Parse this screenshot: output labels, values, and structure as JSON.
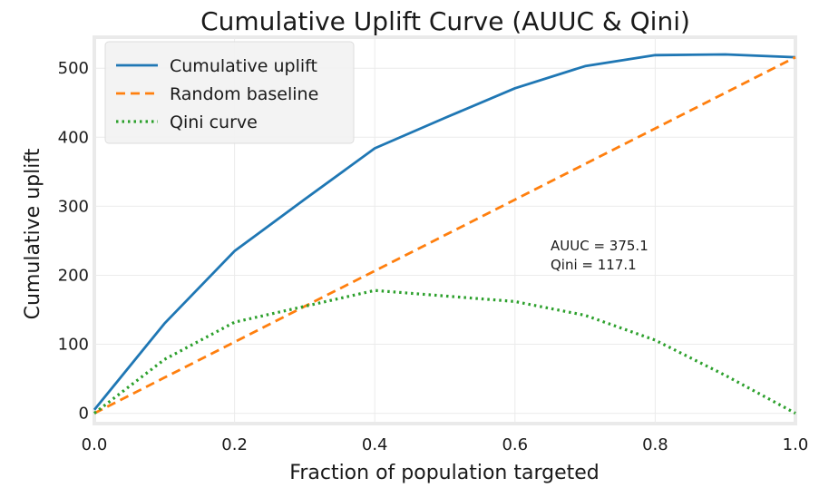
{
  "chart_data": {
    "type": "line",
    "title": "Cumulative Uplift Curve (AUUC & Qini)",
    "xlabel": "Fraction of population targeted",
    "ylabel": "Cumulative uplift",
    "xlim": [
      0.0,
      1.0
    ],
    "ylim": [
      -15,
      545
    ],
    "xticks": [
      "0.0",
      "0.2",
      "0.4",
      "0.6",
      "0.8",
      "1.0"
    ],
    "yticks": [
      "0",
      "100",
      "200",
      "300",
      "400",
      "500"
    ],
    "grid": true,
    "legend_position": "top-left",
    "x": [
      0.0,
      0.1,
      0.2,
      0.3,
      0.4,
      0.5,
      0.6,
      0.7,
      0.8,
      0.9,
      1.0
    ],
    "series": [
      {
        "name": "Cumulative uplift",
        "color": "#1f77b4",
        "style": "solid",
        "values": [
          5,
          130,
          235,
          310,
          384,
          428,
          471,
          503,
          519,
          520,
          516
        ]
      },
      {
        "name": "Random baseline",
        "color": "#ff7f0e",
        "style": "dashed",
        "values": [
          0,
          51.6,
          103.2,
          154.8,
          206.4,
          258,
          309.6,
          361.2,
          412.8,
          464.4,
          516
        ]
      },
      {
        "name": "Qini curve",
        "color": "#2ca02c",
        "style": "dotted",
        "values": [
          0,
          78,
          132,
          155,
          178,
          170,
          162,
          142,
          106,
          55,
          0
        ]
      }
    ],
    "annotations": [
      "AUUC = 375.1",
      "Qini = 117.1"
    ]
  }
}
